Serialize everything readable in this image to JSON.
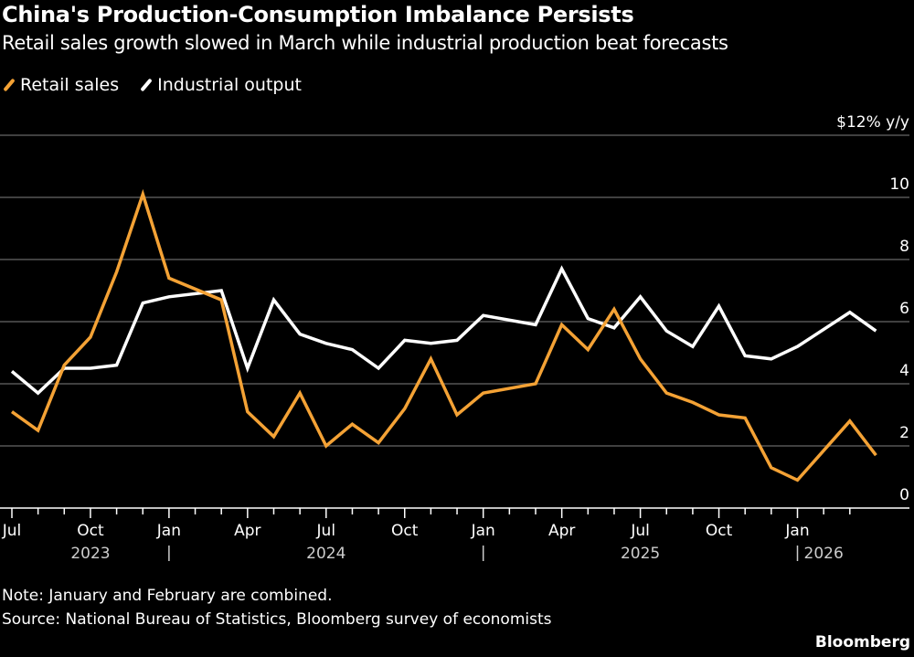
{
  "title": "China's Production-Consumption Imbalance Persists",
  "subtitle": "Retail sales growth slowed in March while industrial production beat forecasts",
  "note": "Note: January and February are combined.",
  "source": "Source: National Bureau of Statistics, Bloomberg survey of economists",
  "logo": "Bloomberg",
  "colors": {
    "background": "#000000",
    "retail": "#f4a235",
    "industrial": "#ffffff",
    "grid": "#555555"
  },
  "chart_data": {
    "type": "line",
    "title": "China's Production-Consumption Imbalance Persists",
    "ylabel": "$12% y/y",
    "ylim": [
      0,
      12
    ],
    "y_ticks": [
      0,
      2,
      4,
      6,
      8,
      10
    ],
    "y_unit_label": "$12% y/y",
    "grid": true,
    "legend_placement": "top-left",
    "x": [
      "2023-06",
      "2023-07",
      "2023-08",
      "2023-09",
      "2023-10",
      "2023-11",
      "2023-12",
      "2024-02",
      "2024-03",
      "2024-04",
      "2024-05",
      "2024-06",
      "2024-07",
      "2024-08",
      "2024-09",
      "2024-10",
      "2024-11",
      "2024-12",
      "2025-02",
      "2025-03",
      "2025-04",
      "2025-05",
      "2025-06",
      "2025-07",
      "2025-08",
      "2025-09",
      "2025-10",
      "2025-11",
      "2025-12",
      "2026-02",
      "2026-03"
    ],
    "series": [
      {
        "name": "Retail sales",
        "color": "#f4a235",
        "values": [
          3.1,
          2.5,
          4.6,
          5.5,
          7.6,
          10.1,
          7.4,
          6.7,
          3.1,
          2.3,
          3.7,
          2.0,
          2.7,
          2.1,
          3.2,
          4.8,
          3.0,
          3.7,
          4.0,
          5.9,
          5.1,
          6.4,
          4.8,
          3.7,
          3.4,
          3.0,
          2.9,
          1.3,
          0.9,
          2.8,
          1.7
        ]
      },
      {
        "name": "Industrial output",
        "color": "#ffffff",
        "values": [
          4.4,
          3.7,
          4.5,
          4.5,
          4.6,
          6.6,
          6.8,
          7.0,
          4.5,
          6.7,
          5.6,
          5.3,
          5.1,
          4.5,
          5.4,
          5.3,
          5.4,
          6.2,
          5.9,
          7.7,
          6.1,
          5.8,
          6.8,
          5.7,
          5.2,
          6.5,
          4.9,
          4.8,
          5.2,
          6.3,
          5.7
        ]
      }
    ],
    "x_tick_labels": [
      {
        "label": "Jul",
        "date": "2023-07"
      },
      {
        "label": "Oct",
        "date": "2023-10"
      },
      {
        "label": "Jan",
        "date": "2024-01"
      },
      {
        "label": "Apr",
        "date": "2024-04"
      },
      {
        "label": "Jul",
        "date": "2024-07"
      },
      {
        "label": "Oct",
        "date": "2024-10"
      },
      {
        "label": "Jan",
        "date": "2025-01"
      },
      {
        "label": "Apr",
        "date": "2025-04"
      },
      {
        "label": "Jul",
        "date": "2025-07"
      },
      {
        "label": "Oct",
        "date": "2025-10"
      },
      {
        "label": "Jan",
        "date": "2026-01"
      }
    ],
    "year_labels": [
      {
        "label": "2023",
        "date": "2023-10"
      },
      {
        "label": "2024",
        "date": "2024-07"
      },
      {
        "label": "2025",
        "date": "2025-07"
      },
      {
        "label": "2026",
        "date": "2026-02"
      }
    ],
    "year_separators": [
      "2024-01",
      "2025-01",
      "2026-01"
    ],
    "x_ticks_range": [
      "2023-07",
      "2026-03"
    ]
  }
}
